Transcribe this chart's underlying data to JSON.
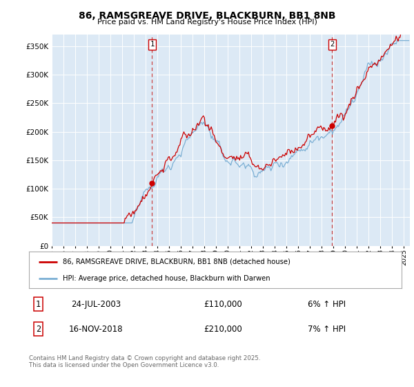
{
  "title": "86, RAMSGREAVE DRIVE, BLACKBURN, BB1 8NB",
  "subtitle": "Price paid vs. HM Land Registry's House Price Index (HPI)",
  "background_color": "#ffffff",
  "plot_bg_color": "#dce9f5",
  "grid_color": "#ffffff",
  "ylim": [
    0,
    370000
  ],
  "yticks": [
    0,
    50000,
    100000,
    150000,
    200000,
    250000,
    300000,
    350000
  ],
  "xlim_start": 1995.0,
  "xlim_end": 2025.5,
  "transaction1": {
    "date_num": 2003.55,
    "price": 110000,
    "label": "1",
    "date_str": "24-JUL-2003",
    "hpi_pct": "6% ↑ HPI"
  },
  "transaction2": {
    "date_num": 2018.88,
    "price": 210000,
    "label": "2",
    "date_str": "16-NOV-2018",
    "hpi_pct": "7% ↑ HPI"
  },
  "line_color_red": "#cc0000",
  "line_color_blue": "#7bafd4",
  "vline_color": "#cc4444",
  "legend_label_red": "86, RAMSGREAVE DRIVE, BLACKBURN, BB1 8NB (detached house)",
  "legend_label_blue": "HPI: Average price, detached house, Blackburn with Darwen",
  "footer": "Contains HM Land Registry data © Crown copyright and database right 2025.\nThis data is licensed under the Open Government Licence v3.0."
}
